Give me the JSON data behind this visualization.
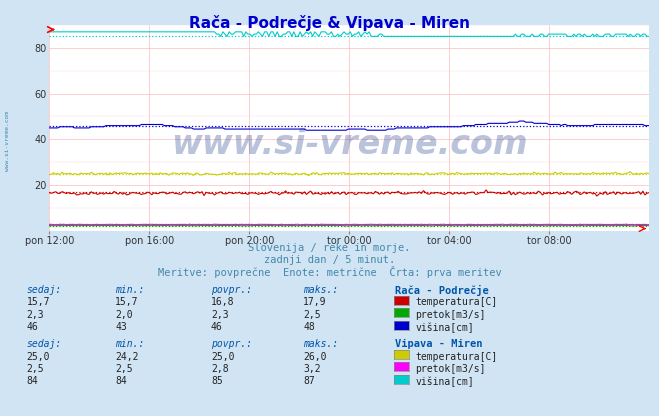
{
  "title": "Rača - Podrečje & Vipava - Miren",
  "title_color": "#0000cc",
  "bg_color": "#d0e4f4",
  "plot_bg_color": "#ffffff",
  "grid_color_major": "#ffaaaa",
  "grid_color_minor": "#ffdddd",
  "xlabel_ticks": [
    "pon 12:00",
    "pon 16:00",
    "pon 20:00",
    "tor 00:00",
    "tor 04:00",
    "tor 08:00"
  ],
  "n_points": 288,
  "ylim": [
    0,
    90
  ],
  "yticks": [
    20,
    40,
    60,
    80
  ],
  "subtitle1": "Slovenija / reke in morje.",
  "subtitle2": "zadnji dan / 5 minut.",
  "subtitle3": "Meritve: povprečne  Enote: metrične  Črta: prva meritev",
  "subtitle_color": "#4488aa",
  "watermark": "www.si-vreme.com",
  "watermark_color": "#1a3a8a",
  "watermark_alpha": 0.3,
  "left_label": "www.si-vreme.com",
  "left_label_color": "#4488aa",
  "series": {
    "raca_temp": {
      "color": "#cc0000",
      "avg": 16.8,
      "min": 15.7,
      "max": 17.9
    },
    "raca_pretok": {
      "color": "#00aa00",
      "avg": 2.3,
      "min": 2.0,
      "max": 2.5
    },
    "raca_visina": {
      "color": "#0000cc",
      "avg": 46.0,
      "min": 43.0,
      "max": 48.0
    },
    "vipava_temp": {
      "color": "#cccc00",
      "avg": 25.0,
      "min": 24.2,
      "max": 26.0
    },
    "vipava_pretok": {
      "color": "#ff00ff",
      "avg": 2.8,
      "min": 2.5,
      "max": 3.2
    },
    "vipava_visina": {
      "color": "#00cccc",
      "avg": 85.0,
      "min": 84.0,
      "max": 87.0
    }
  },
  "table_color": "#0055aa",
  "station1_name": "Rača - Podrečje",
  "station2_name": "Vipava - Miren",
  "raca": {
    "sedaj": [
      "15,7",
      "2,3",
      "46"
    ],
    "min": [
      "15,7",
      "2,0",
      "43"
    ],
    "povpr": [
      "16,8",
      "2,3",
      "46"
    ],
    "maks": [
      "17,9",
      "2,5",
      "48"
    ],
    "labels": [
      "temperatura[C]",
      "pretok[m3/s]",
      "višina[cm]"
    ],
    "colors": [
      "#cc0000",
      "#00aa00",
      "#0000cc"
    ]
  },
  "vipava": {
    "sedaj": [
      "25,0",
      "2,5",
      "84"
    ],
    "min": [
      "24,2",
      "2,5",
      "84"
    ],
    "povpr": [
      "25,0",
      "2,8",
      "85"
    ],
    "maks": [
      "26,0",
      "3,2",
      "87"
    ],
    "labels": [
      "temperatura[C]",
      "pretok[m3/s]",
      "višina[cm]"
    ],
    "colors": [
      "#cccc00",
      "#ff00ff",
      "#00cccc"
    ]
  }
}
